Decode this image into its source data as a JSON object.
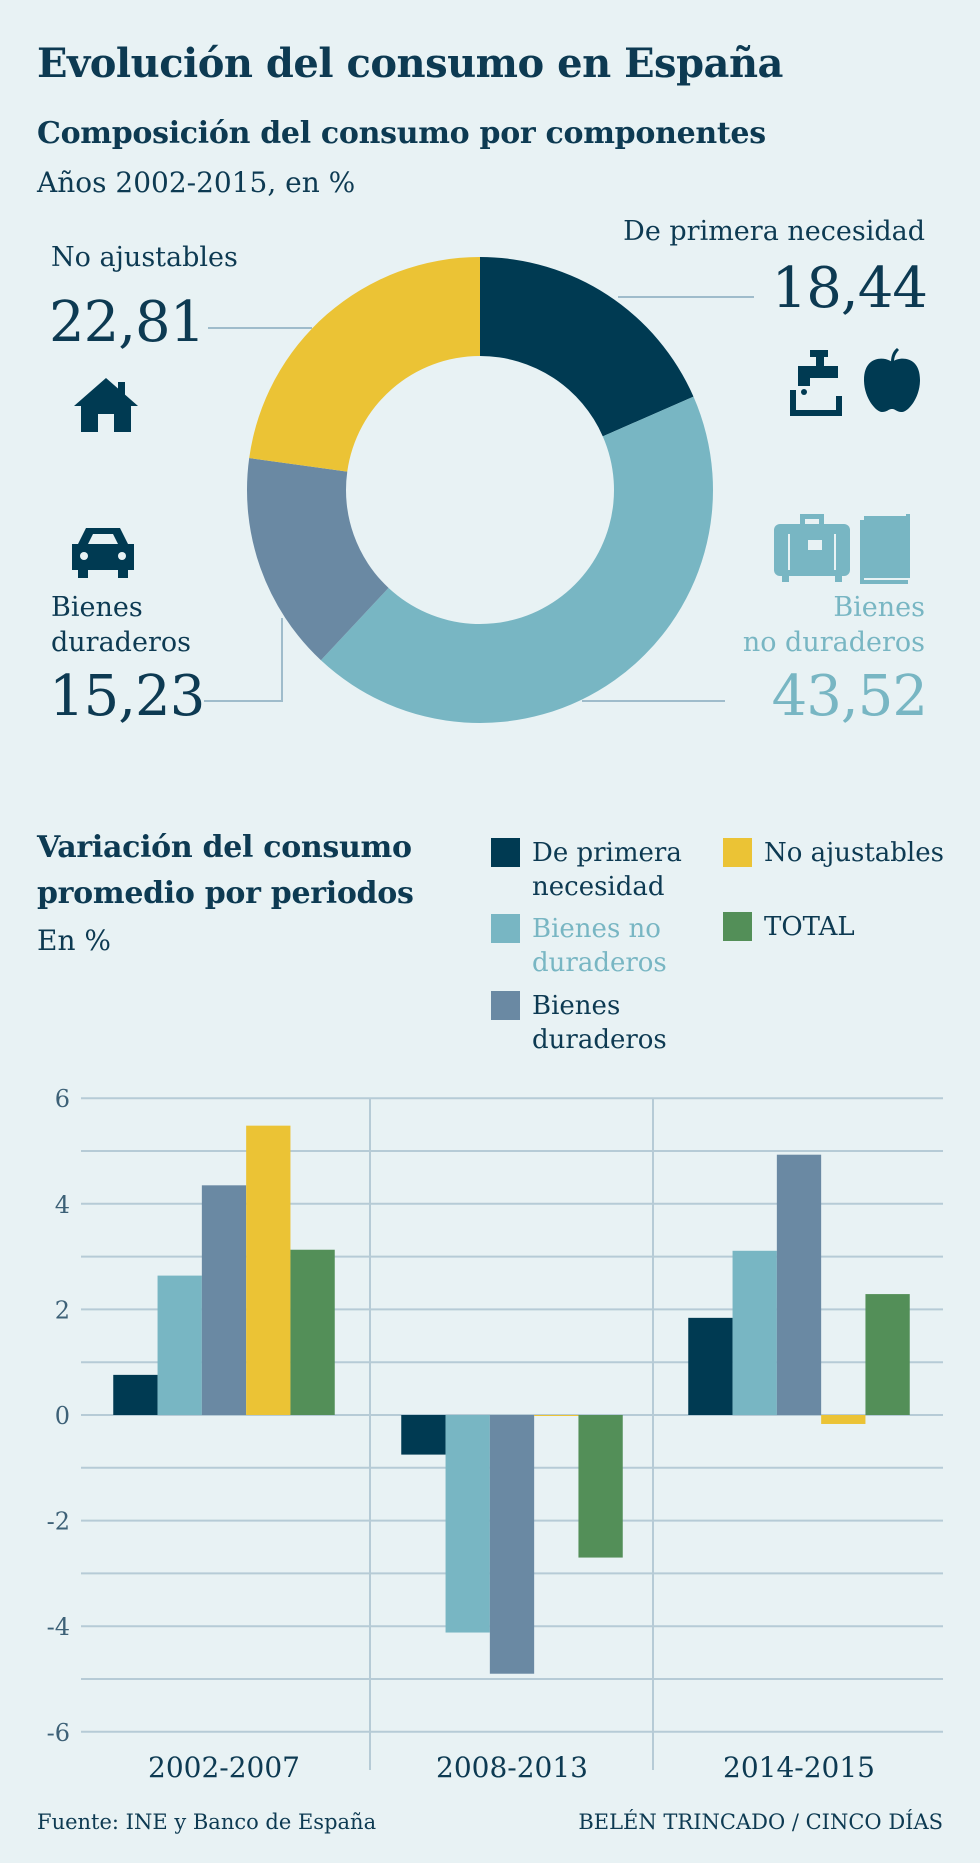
{
  "title": "Evolución del consumo en España",
  "donut": {
    "title": "Composición del consumo por componentes",
    "subtitle": "Años 2002-2015, en %",
    "segments": [
      {
        "label": "De primera necesidad",
        "value_text": "18,44",
        "value": 18.44,
        "color": "#003a52",
        "icons": [
          "faucet-icon",
          "apple-icon"
        ]
      },
      {
        "label_lines": [
          "Bienes",
          "no duraderos"
        ],
        "value_text": "43,52",
        "value": 43.52,
        "color": "#78b6c3",
        "icons": [
          "suitcase-icon",
          "book-icon"
        ]
      },
      {
        "label_lines": [
          "Bienes",
          "duraderos"
        ],
        "value_text": "15,23",
        "value": 15.23,
        "color": "#6a89a3",
        "icons": [
          "car-icon"
        ]
      },
      {
        "label": "No ajustables",
        "value_text": "22,81",
        "value": 22.81,
        "color": "#ebc335",
        "icons": [
          "house-icon"
        ]
      }
    ]
  },
  "bars": {
    "title_lines": [
      "Variación del consumo",
      "promedio por periodos"
    ],
    "subtitle": "En %"
  },
  "chart_data": {
    "type": "bar",
    "categories": [
      "2002-2007",
      "2008-2013",
      "2014-2015"
    ],
    "series": [
      {
        "name": "De primera necesidad",
        "legend_lines": [
          "De primera",
          "necesidad"
        ],
        "color": "#003a52",
        "values": [
          0.76,
          -0.75,
          1.84
        ]
      },
      {
        "name": "Bienes no duraderos",
        "legend_lines": [
          "Bienes no",
          "duraderos"
        ],
        "color": "#78b6c3",
        "values": [
          2.64,
          -4.12,
          3.11
        ]
      },
      {
        "name": "Bienes duraderos",
        "legend_lines": [
          "Bienes",
          "duraderos"
        ],
        "color": "#6a89a3",
        "values": [
          4.35,
          -4.9,
          4.93
        ]
      },
      {
        "name": "No ajustables",
        "legend_lines": [
          "No ajustables"
        ],
        "color": "#ebc335",
        "values": [
          5.48,
          -0.01,
          -0.17
        ]
      },
      {
        "name": "TOTAL",
        "legend_lines": [
          "TOTAL"
        ],
        "color": "#538f58",
        "values": [
          3.13,
          -2.7,
          2.29
        ]
      }
    ],
    "yticks": [
      "6",
      "4",
      "2",
      "0",
      "-2",
      "-4",
      "-6"
    ],
    "ylim": [
      -6,
      6
    ],
    "grid": true,
    "legend": "top-right"
  },
  "footer": {
    "source": "Fuente: INE y Banco de España",
    "credit": "BELÉN TRINCADO / CINCO DÍAS"
  }
}
